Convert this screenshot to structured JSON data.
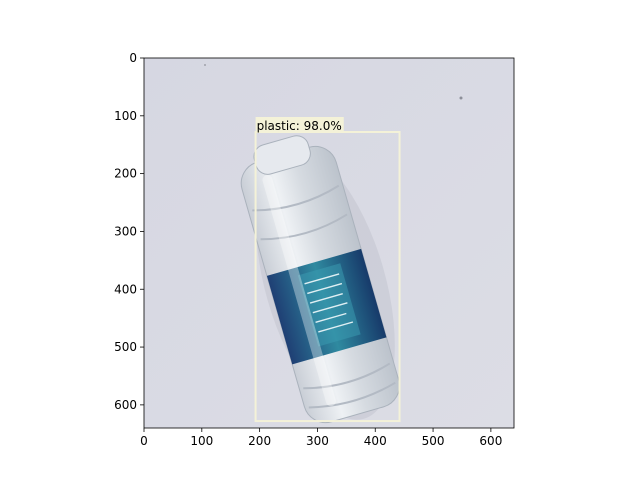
{
  "axes": {
    "x_ticks": [
      "0",
      "100",
      "200",
      "300",
      "400",
      "500",
      "600"
    ],
    "y_ticks": [
      "0",
      "100",
      "200",
      "300",
      "400",
      "500",
      "600"
    ]
  },
  "image": {
    "width": 640,
    "height": 640,
    "subject": "plastic water bottle on a light grey surface",
    "background_color": "#d8d9e3"
  },
  "detection": {
    "label": "plastic: 98.0%",
    "box": {
      "x_min": 193,
      "y_min": 128,
      "x_max": 442,
      "y_max": 628
    },
    "box_color": "#f4f2d8"
  }
}
